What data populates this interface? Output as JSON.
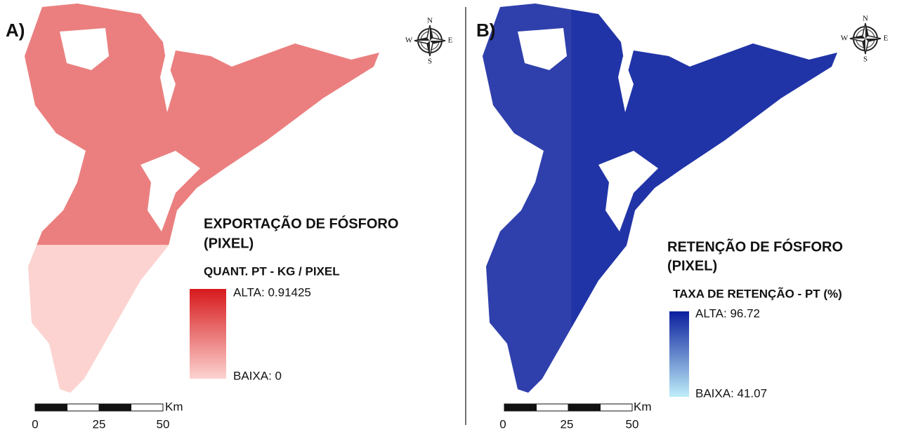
{
  "panels": [
    {
      "label": "A)",
      "compass": {
        "n": "N",
        "s": "S",
        "e": "E",
        "w": "W"
      },
      "legend_title": [
        "EXPORTAÇÃO DE FÓSFORO",
        "(PIXEL)"
      ],
      "legend_subtitle": "QUANT. PT - KG / PIXEL",
      "high_label": "ALTA: 0.91425",
      "low_label": "BAIXA: 0",
      "ramp": {
        "high": "#d7191c",
        "low": "#fcd3d0"
      },
      "scale_ticks": [
        "0",
        "25",
        "50"
      ],
      "scale_unit": "Km"
    },
    {
      "label": "B)",
      "compass": {
        "n": "N",
        "s": "S",
        "e": "E",
        "w": "W"
      },
      "legend_title": [
        "RETENÇÃO DE FÓSFORO",
        "(PIXEL)"
      ],
      "legend_subtitle": "TAXA DE RETENÇÃO - PT (%)",
      "high_label": "ALTA: 96.72",
      "low_label": "BAIXA: 41.07",
      "ramp": {
        "high": "#0a1f9e",
        "low": "#bfeefa"
      },
      "scale_ticks": [
        "0",
        "25",
        "50"
      ],
      "scale_unit": "Km"
    }
  ]
}
